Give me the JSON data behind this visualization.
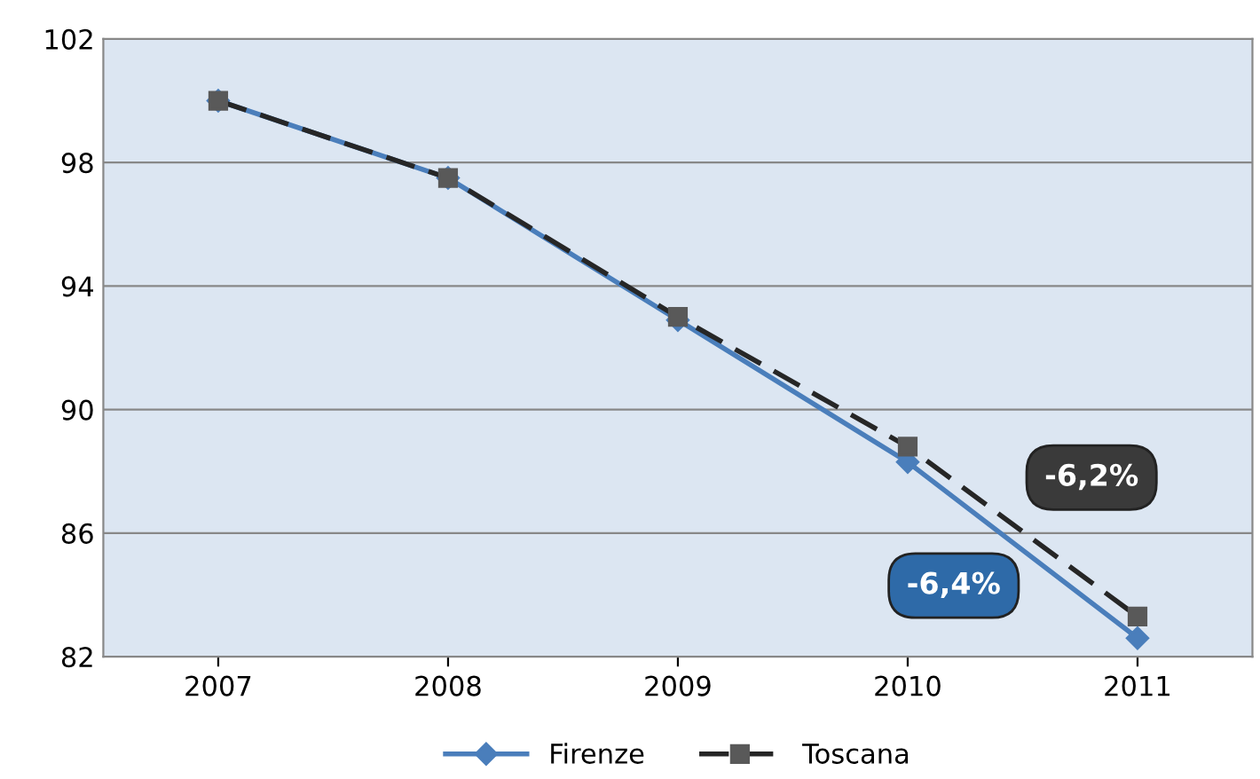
{
  "chart_data": {
    "type": "line",
    "categories": [
      "2007",
      "2008",
      "2009",
      "2010",
      "2011"
    ],
    "series": [
      {
        "name": "Firenze",
        "color": "#4a7ebb",
        "values": [
          100,
          97.5,
          92.9,
          88.3,
          82.6
        ],
        "marker": "diamond",
        "line_style": "solid"
      },
      {
        "name": "Toscana",
        "color": "#262626",
        "values": [
          100,
          97.5,
          93.0,
          88.8,
          83.3
        ],
        "marker": "square",
        "line_style": "dashed"
      }
    ],
    "ylim": [
      82,
      102
    ],
    "yticks": [
      82,
      86,
      90,
      94,
      98,
      102
    ],
    "grid": "y",
    "legend": "bottom",
    "annotations": [
      "-6,4%",
      "-6,2%"
    ]
  }
}
